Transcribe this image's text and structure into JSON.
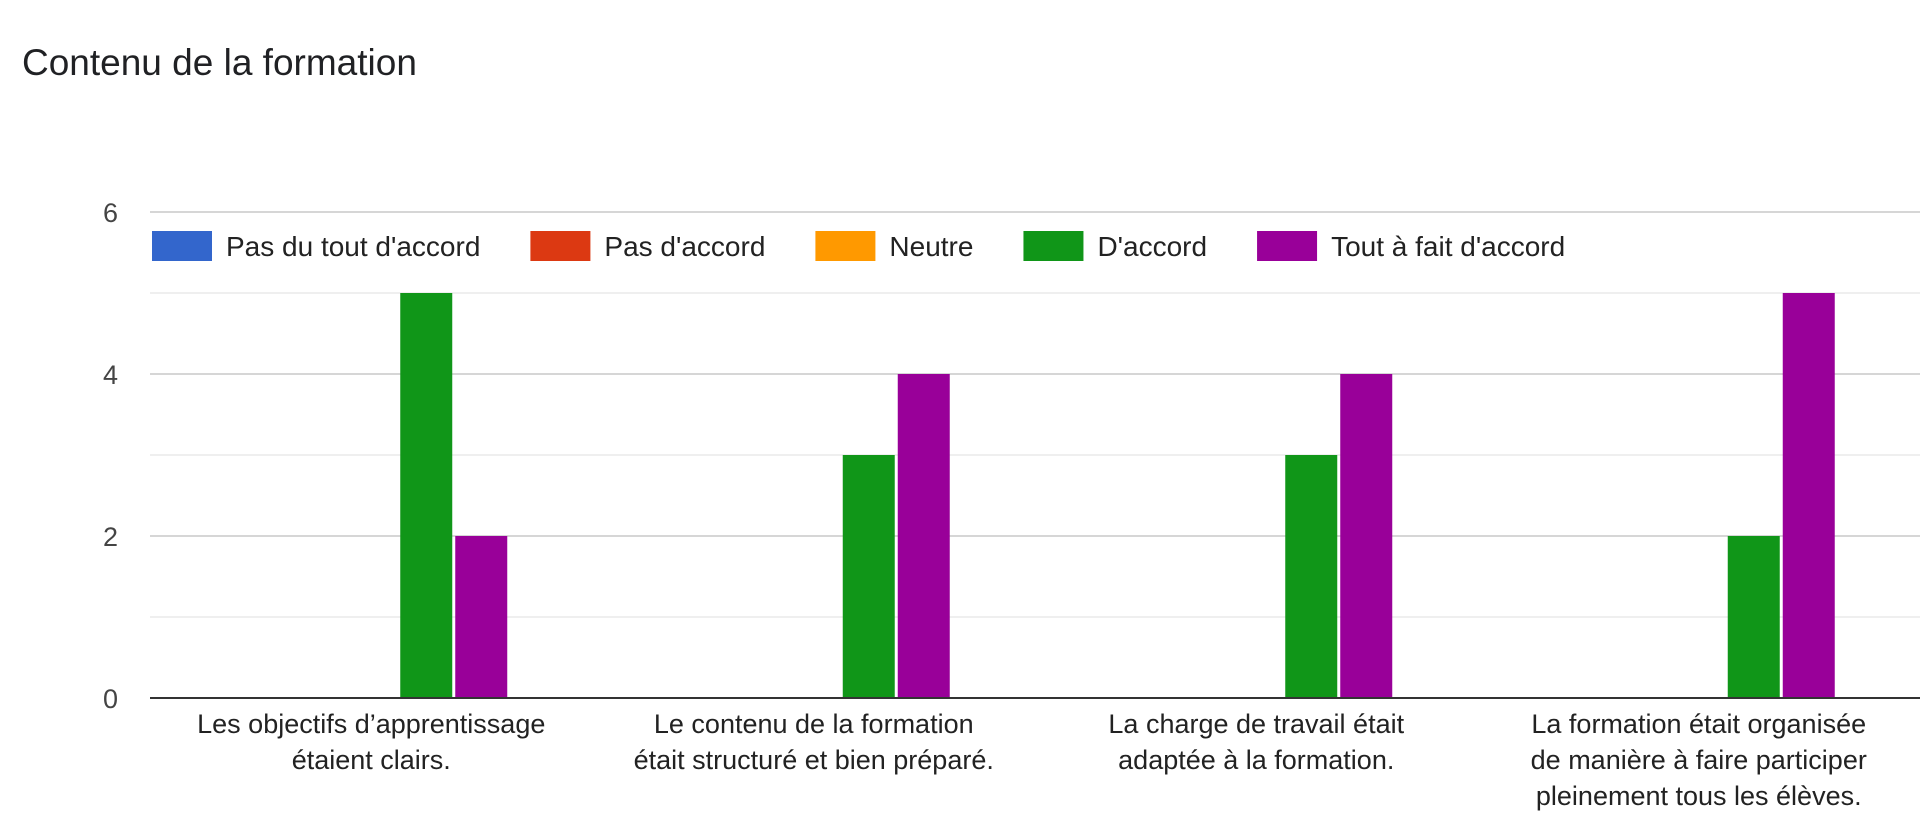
{
  "chart_data": {
    "type": "bar",
    "title": "Contenu de la formation",
    "categories": [
      [
        "Les objectifs d’apprentissage",
        "étaient clairs."
      ],
      [
        "Le contenu de la formation",
        "était structuré et bien préparé."
      ],
      [
        "La charge de travail était",
        "adaptée à la formation."
      ],
      [
        "La formation était organisée",
        "de manière à faire participer",
        "pleinement tous les élèves."
      ]
    ],
    "series": [
      {
        "name": "Pas du tout d'accord",
        "color": "#3366cc",
        "values": [
          0,
          0,
          0,
          0
        ]
      },
      {
        "name": "Pas d'accord",
        "color": "#dc3912",
        "values": [
          0,
          0,
          0,
          0
        ]
      },
      {
        "name": "Neutre",
        "color": "#ff9900",
        "values": [
          0,
          0,
          0,
          0
        ]
      },
      {
        "name": "D'accord",
        "color": "#109618",
        "values": [
          5,
          3,
          3,
          2
        ]
      },
      {
        "name": "Tout à fait d'accord",
        "color": "#990099",
        "values": [
          2,
          4,
          4,
          5
        ]
      }
    ],
    "ylim": [
      0,
      6
    ],
    "yticks": [
      0,
      2,
      4,
      6
    ],
    "minor_gridlines": true,
    "legend_position": "top",
    "xlabel": "",
    "ylabel": ""
  }
}
